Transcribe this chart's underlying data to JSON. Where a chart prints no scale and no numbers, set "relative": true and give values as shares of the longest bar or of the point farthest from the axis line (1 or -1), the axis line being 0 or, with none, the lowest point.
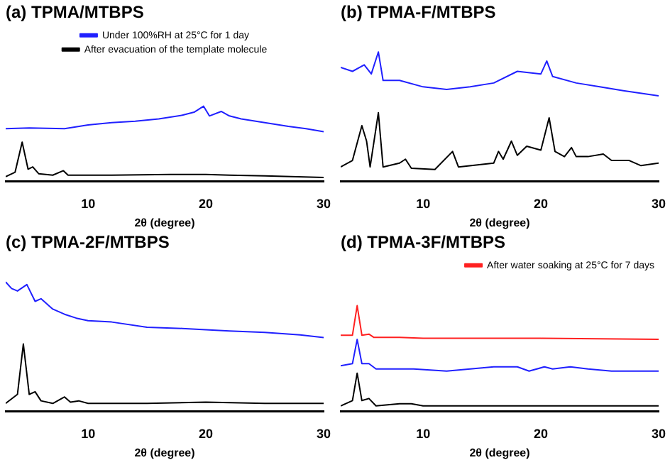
{
  "chart_data": [
    {
      "type": "line",
      "title": "(a) TPMA/MTBPS",
      "xlabel": "2θ (degree)",
      "relative": true,
      "xlim": [
        3,
        30
      ],
      "xticks": [
        10,
        20,
        30
      ],
      "tick_labels": "x",
      "legend": "top",
      "series": [
        {
          "name": "Under 100%RH at 25°C for 1 day",
          "color": "#2020ff",
          "x": [
            3,
            5,
            8,
            10,
            12,
            14,
            16,
            18,
            19,
            19.8,
            20.3,
            21.3,
            22,
            23,
            25,
            27,
            28.5,
            30
          ],
          "values": [
            0.7,
            0.71,
            0.7,
            0.75,
            0.78,
            0.8,
            0.83,
            0.88,
            0.92,
            1.0,
            0.87,
            0.93,
            0.87,
            0.83,
            0.78,
            0.73,
            0.7,
            0.66
          ]
        },
        {
          "name": "After evacuation of the template molecule",
          "color": "#000000",
          "x": [
            3,
            3.8,
            4.4,
            4.9,
            5.3,
            5.8,
            7,
            7.9,
            8.3,
            9.5,
            12,
            17,
            20,
            22,
            25,
            30
          ],
          "values": [
            0.06,
            0.12,
            0.52,
            0.16,
            0.19,
            0.1,
            0.08,
            0.14,
            0.08,
            0.08,
            0.08,
            0.09,
            0.09,
            0.08,
            0.07,
            0.05
          ]
        }
      ]
    },
    {
      "type": "line",
      "title": "(b) TPMA-F/MTBPS",
      "xlabel": "2θ (degree)",
      "relative": true,
      "xlim": [
        3,
        30
      ],
      "xticks": [
        10,
        20,
        30
      ],
      "tick_labels": "x",
      "series": [
        {
          "color": "#2020ff",
          "x": [
            3,
            4,
            5,
            5.6,
            6.2,
            6.6,
            8,
            10,
            12,
            14,
            16,
            18,
            20,
            20.5,
            21,
            23,
            25,
            27,
            30
          ],
          "values": [
            0.88,
            0.85,
            0.9,
            0.83,
            1.0,
            0.78,
            0.78,
            0.73,
            0.71,
            0.73,
            0.76,
            0.85,
            0.83,
            0.93,
            0.81,
            0.76,
            0.73,
            0.7,
            0.66
          ]
        },
        {
          "color": "#000000",
          "x": [
            3,
            4,
            4.8,
            5.2,
            5.5,
            6.2,
            6.6,
            8,
            8.5,
            9,
            11,
            12.5,
            13,
            16,
            16.4,
            16.8,
            17.5,
            18,
            18.8,
            20,
            20.7,
            21.2,
            22,
            22.6,
            23,
            24,
            25.3,
            26,
            27.5,
            28.5,
            30
          ],
          "values": [
            0.11,
            0.16,
            0.43,
            0.31,
            0.11,
            0.53,
            0.11,
            0.14,
            0.17,
            0.1,
            0.09,
            0.23,
            0.11,
            0.14,
            0.23,
            0.17,
            0.31,
            0.2,
            0.27,
            0.24,
            0.49,
            0.23,
            0.19,
            0.26,
            0.19,
            0.19,
            0.21,
            0.16,
            0.16,
            0.12,
            0.14
          ]
        }
      ]
    },
    {
      "type": "line",
      "title": "(c) TPMA-2F/MTBPS",
      "xlabel": "2θ (degree)",
      "relative": true,
      "xlim": [
        3,
        30
      ],
      "xticks": [
        10,
        20,
        30
      ],
      "tick_labels": "x",
      "series": [
        {
          "color": "#2020ff",
          "x": [
            3,
            3.5,
            4,
            4.8,
            5.5,
            6,
            7,
            8,
            9,
            10,
            12,
            15,
            18,
            20,
            22,
            25,
            28,
            30
          ],
          "values": [
            1.0,
            0.95,
            0.93,
            0.98,
            0.85,
            0.87,
            0.79,
            0.75,
            0.72,
            0.7,
            0.69,
            0.65,
            0.64,
            0.63,
            0.62,
            0.61,
            0.59,
            0.57
          ]
        },
        {
          "color": "#000000",
          "x": [
            3,
            4,
            4.5,
            5,
            5.5,
            6,
            7,
            8,
            8.5,
            9.2,
            10,
            15,
            20,
            25,
            30
          ],
          "values": [
            0.06,
            0.13,
            0.52,
            0.13,
            0.15,
            0.08,
            0.06,
            0.11,
            0.07,
            0.08,
            0.06,
            0.06,
            0.07,
            0.06,
            0.06
          ]
        }
      ]
    },
    {
      "type": "line",
      "title": "(d) TPMA-3F/MTBPS",
      "xlabel": "2θ (degree)",
      "relative": true,
      "xlim": [
        3,
        30
      ],
      "xticks": [
        10,
        20,
        30
      ],
      "tick_labels": "x",
      "legend": "top right",
      "series": [
        {
          "name": "After water soaking at 25°C for 7 days",
          "color": "#ff2020",
          "x": [
            3,
            4,
            4.4,
            4.8,
            5.4,
            5.8,
            8,
            10,
            20,
            30
          ],
          "values": [
            0.72,
            0.72,
            1.0,
            0.72,
            0.73,
            0.7,
            0.7,
            0.69,
            0.69,
            0.68
          ]
        },
        {
          "color": "#2020ff",
          "x": [
            3,
            4,
            4.4,
            4.8,
            5.4,
            6,
            8,
            9.2,
            12,
            16,
            18,
            19,
            20.3,
            21,
            22.5,
            24,
            26,
            30
          ],
          "values": [
            0.43,
            0.45,
            0.68,
            0.45,
            0.45,
            0.4,
            0.4,
            0.4,
            0.38,
            0.42,
            0.42,
            0.38,
            0.42,
            0.4,
            0.42,
            0.4,
            0.38,
            0.38
          ]
        },
        {
          "color": "#000000",
          "x": [
            3,
            4,
            4.4,
            4.8,
            5.4,
            6,
            8,
            9,
            10,
            20,
            30
          ],
          "values": [
            0.05,
            0.1,
            0.36,
            0.1,
            0.12,
            0.05,
            0.07,
            0.07,
            0.05,
            0.05,
            0.05
          ]
        }
      ]
    }
  ]
}
